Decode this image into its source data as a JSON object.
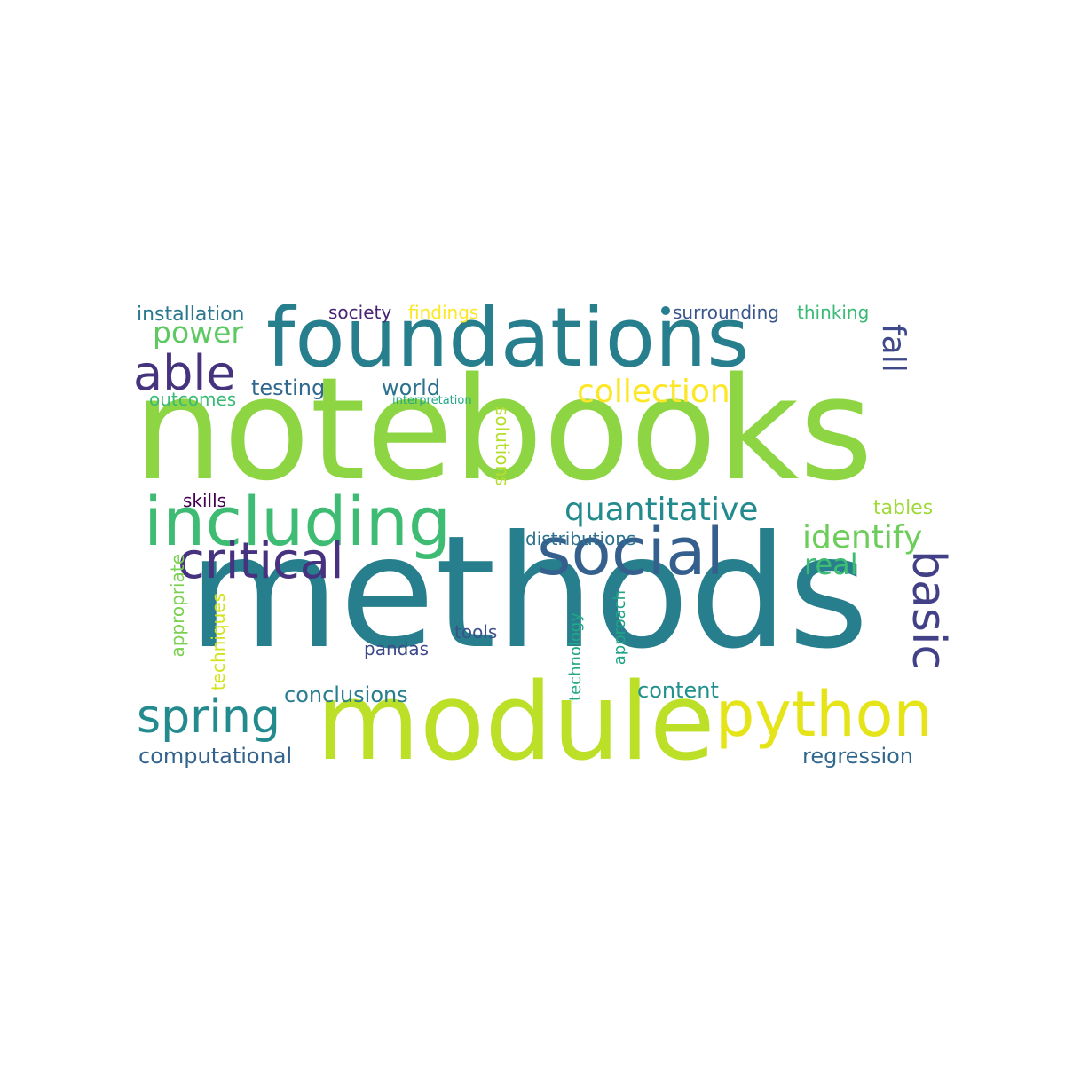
{
  "words": [
    {
      "text": "notebooks",
      "color": "#8ed544"
    },
    {
      "text": "methods",
      "color": "#277f8e"
    },
    {
      "text": "foundations",
      "color": "#277f8e"
    },
    {
      "text": "module",
      "color": "#bcdf27"
    },
    {
      "text": "including",
      "color": "#3fbc73"
    },
    {
      "text": "social",
      "color": "#35608d"
    },
    {
      "text": "python",
      "color": "#e5e419"
    },
    {
      "text": "critical",
      "color": "#46327e"
    },
    {
      "text": "able",
      "color": "#46337e"
    },
    {
      "text": "basic",
      "color": "#424086"
    },
    {
      "text": "spring",
      "color": "#238a8d"
    },
    {
      "text": "quantitative",
      "color": "#238a8d"
    },
    {
      "text": "collection",
      "color": "#fde725"
    },
    {
      "text": "identify",
      "color": "#6ccd5a"
    },
    {
      "text": "power",
      "color": "#5ec962"
    },
    {
      "text": "fall",
      "color": "#3e4989"
    },
    {
      "text": "real",
      "color": "#3fbc73"
    },
    {
      "text": "world",
      "color": "#2c728e"
    },
    {
      "text": "testing",
      "color": "#31688e"
    },
    {
      "text": "conclusions",
      "color": "#287d8e"
    },
    {
      "text": "computational",
      "color": "#33638d"
    },
    {
      "text": "regression",
      "color": "#31688e"
    },
    {
      "text": "content",
      "color": "#21918c"
    },
    {
      "text": "installation",
      "color": "#2a788e"
    },
    {
      "text": "outcomes",
      "color": "#3aba76"
    },
    {
      "text": "society",
      "color": "#482475"
    },
    {
      "text": "findings",
      "color": "#fde725"
    },
    {
      "text": "surrounding",
      "color": "#39568c"
    },
    {
      "text": "thinking",
      "color": "#3aba76"
    },
    {
      "text": "tables",
      "color": "#a0da39"
    },
    {
      "text": "distributions",
      "color": "#2c728e"
    },
    {
      "text": "skills",
      "color": "#440154"
    },
    {
      "text": "tools",
      "color": "#3b528b"
    },
    {
      "text": "pandas",
      "color": "#3e4a89"
    },
    {
      "text": "interpretation",
      "color": "#22a884"
    },
    {
      "text": "solutions",
      "color": "#b5de2b"
    },
    {
      "text": "appropriate",
      "color": "#7ad151"
    },
    {
      "text": "techniques",
      "color": "#d2e21b"
    },
    {
      "text": "approach",
      "color": "#20a386"
    },
    {
      "text": "technology",
      "color": "#22a884"
    },
    {
      "text": "dot",
      "color": "#287d8e"
    }
  ]
}
